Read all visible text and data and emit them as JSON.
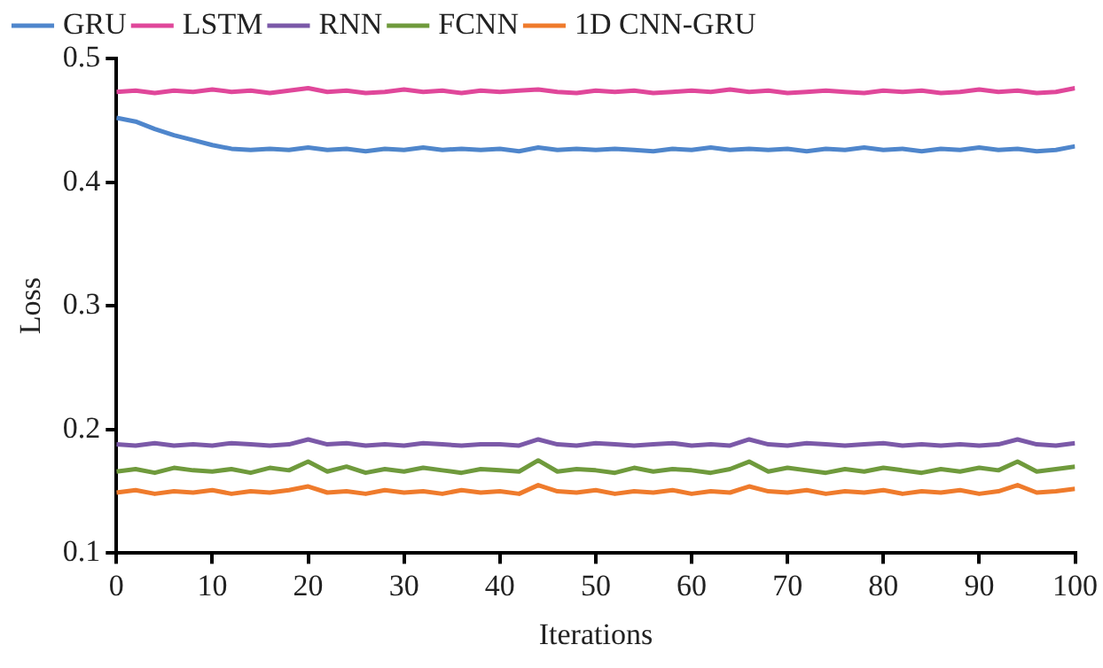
{
  "chart_data": {
    "type": "line",
    "xlabel": "Iterations",
    "ylabel": "Loss",
    "x": [
      0,
      2,
      4,
      6,
      8,
      10,
      12,
      14,
      16,
      18,
      20,
      22,
      24,
      26,
      28,
      30,
      32,
      34,
      36,
      38,
      40,
      42,
      44,
      46,
      48,
      50,
      52,
      54,
      56,
      58,
      60,
      62,
      64,
      66,
      68,
      70,
      72,
      74,
      76,
      78,
      80,
      82,
      84,
      86,
      88,
      90,
      92,
      94,
      96,
      98,
      100
    ],
    "xlim": [
      0,
      100
    ],
    "xticks": [
      0,
      10,
      20,
      30,
      40,
      50,
      60,
      70,
      80,
      90,
      100
    ],
    "ylim": [
      0.1,
      0.5
    ],
    "yticks": [
      0.1,
      0.2,
      0.3,
      0.4,
      0.5
    ],
    "grid": false,
    "legend": "top",
    "marker": "none",
    "line_style": "solid",
    "series": [
      {
        "name": "GRU",
        "color": "#4f86cc",
        "values": [
          0.452,
          0.449,
          0.443,
          0.438,
          0.434,
          0.43,
          0.427,
          0.426,
          0.427,
          0.426,
          0.428,
          0.426,
          0.427,
          0.425,
          0.427,
          0.426,
          0.428,
          0.426,
          0.427,
          0.426,
          0.427,
          0.425,
          0.428,
          0.426,
          0.427,
          0.426,
          0.427,
          0.426,
          0.425,
          0.427,
          0.426,
          0.428,
          0.426,
          0.427,
          0.426,
          0.427,
          0.425,
          0.427,
          0.426,
          0.428,
          0.426,
          0.427,
          0.425,
          0.427,
          0.426,
          0.428,
          0.426,
          0.427,
          0.425,
          0.426,
          0.429
        ]
      },
      {
        "name": "LSTM",
        "color": "#e0479a",
        "values": [
          0.473,
          0.474,
          0.472,
          0.474,
          0.473,
          0.475,
          0.473,
          0.474,
          0.472,
          0.474,
          0.476,
          0.473,
          0.474,
          0.472,
          0.473,
          0.475,
          0.473,
          0.474,
          0.472,
          0.474,
          0.473,
          0.474,
          0.475,
          0.473,
          0.472,
          0.474,
          0.473,
          0.474,
          0.472,
          0.473,
          0.474,
          0.473,
          0.475,
          0.473,
          0.474,
          0.472,
          0.473,
          0.474,
          0.473,
          0.472,
          0.474,
          0.473,
          0.474,
          0.472,
          0.473,
          0.475,
          0.473,
          0.474,
          0.472,
          0.473,
          0.476
        ]
      },
      {
        "name": "RNN",
        "color": "#7b59a8",
        "values": [
          0.188,
          0.187,
          0.189,
          0.187,
          0.188,
          0.187,
          0.189,
          0.188,
          0.187,
          0.188,
          0.192,
          0.188,
          0.189,
          0.187,
          0.188,
          0.187,
          0.189,
          0.188,
          0.187,
          0.188,
          0.188,
          0.187,
          0.192,
          0.188,
          0.187,
          0.189,
          0.188,
          0.187,
          0.188,
          0.189,
          0.187,
          0.188,
          0.187,
          0.192,
          0.188,
          0.187,
          0.189,
          0.188,
          0.187,
          0.188,
          0.189,
          0.187,
          0.188,
          0.187,
          0.188,
          0.187,
          0.188,
          0.192,
          0.188,
          0.187,
          0.189
        ]
      },
      {
        "name": "FCNN",
        "color": "#6f9a3c",
        "values": [
          0.166,
          0.168,
          0.165,
          0.169,
          0.167,
          0.166,
          0.168,
          0.165,
          0.169,
          0.167,
          0.174,
          0.166,
          0.17,
          0.165,
          0.168,
          0.166,
          0.169,
          0.167,
          0.165,
          0.168,
          0.167,
          0.166,
          0.175,
          0.166,
          0.168,
          0.167,
          0.165,
          0.169,
          0.166,
          0.168,
          0.167,
          0.165,
          0.168,
          0.174,
          0.166,
          0.169,
          0.167,
          0.165,
          0.168,
          0.166,
          0.169,
          0.167,
          0.165,
          0.168,
          0.166,
          0.169,
          0.167,
          0.174,
          0.166,
          0.168,
          0.17
        ]
      },
      {
        "name": "1D CNN-GRU",
        "color": "#ef7b2c",
        "values": [
          0.149,
          0.151,
          0.148,
          0.15,
          0.149,
          0.151,
          0.148,
          0.15,
          0.149,
          0.151,
          0.154,
          0.149,
          0.15,
          0.148,
          0.151,
          0.149,
          0.15,
          0.148,
          0.151,
          0.149,
          0.15,
          0.148,
          0.155,
          0.15,
          0.149,
          0.151,
          0.148,
          0.15,
          0.149,
          0.151,
          0.148,
          0.15,
          0.149,
          0.154,
          0.15,
          0.149,
          0.151,
          0.148,
          0.15,
          0.149,
          0.151,
          0.148,
          0.15,
          0.149,
          0.151,
          0.148,
          0.15,
          0.155,
          0.149,
          0.15,
          0.152
        ]
      }
    ]
  }
}
